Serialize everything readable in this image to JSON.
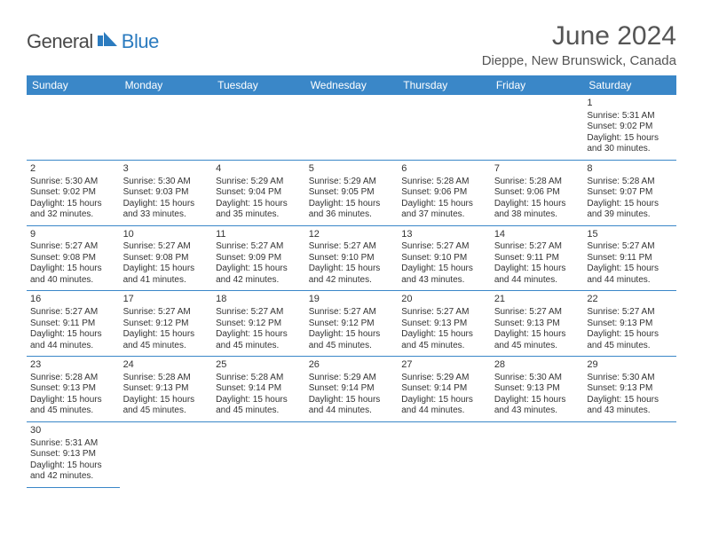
{
  "logo": {
    "general": "General",
    "blue": "Blue"
  },
  "header": {
    "month_title": "June 2024",
    "location": "Dieppe, New Brunswick, Canada"
  },
  "colors": {
    "header_bg": "#3a87c8",
    "header_text": "#ffffff",
    "row_divider": "#3a87c8",
    "text": "#333333",
    "logo_gray": "#4a4a4a",
    "logo_blue": "#2b7bbf"
  },
  "days_of_week": [
    "Sunday",
    "Monday",
    "Tuesday",
    "Wednesday",
    "Thursday",
    "Friday",
    "Saturday"
  ],
  "grid": [
    [
      null,
      null,
      null,
      null,
      null,
      null,
      {
        "n": "1",
        "sr": "Sunrise: 5:31 AM",
        "ss": "Sunset: 9:02 PM",
        "d1": "Daylight: 15 hours",
        "d2": "and 30 minutes."
      }
    ],
    [
      {
        "n": "2",
        "sr": "Sunrise: 5:30 AM",
        "ss": "Sunset: 9:02 PM",
        "d1": "Daylight: 15 hours",
        "d2": "and 32 minutes."
      },
      {
        "n": "3",
        "sr": "Sunrise: 5:30 AM",
        "ss": "Sunset: 9:03 PM",
        "d1": "Daylight: 15 hours",
        "d2": "and 33 minutes."
      },
      {
        "n": "4",
        "sr": "Sunrise: 5:29 AM",
        "ss": "Sunset: 9:04 PM",
        "d1": "Daylight: 15 hours",
        "d2": "and 35 minutes."
      },
      {
        "n": "5",
        "sr": "Sunrise: 5:29 AM",
        "ss": "Sunset: 9:05 PM",
        "d1": "Daylight: 15 hours",
        "d2": "and 36 minutes."
      },
      {
        "n": "6",
        "sr": "Sunrise: 5:28 AM",
        "ss": "Sunset: 9:06 PM",
        "d1": "Daylight: 15 hours",
        "d2": "and 37 minutes."
      },
      {
        "n": "7",
        "sr": "Sunrise: 5:28 AM",
        "ss": "Sunset: 9:06 PM",
        "d1": "Daylight: 15 hours",
        "d2": "and 38 minutes."
      },
      {
        "n": "8",
        "sr": "Sunrise: 5:28 AM",
        "ss": "Sunset: 9:07 PM",
        "d1": "Daylight: 15 hours",
        "d2": "and 39 minutes."
      }
    ],
    [
      {
        "n": "9",
        "sr": "Sunrise: 5:27 AM",
        "ss": "Sunset: 9:08 PM",
        "d1": "Daylight: 15 hours",
        "d2": "and 40 minutes."
      },
      {
        "n": "10",
        "sr": "Sunrise: 5:27 AM",
        "ss": "Sunset: 9:08 PM",
        "d1": "Daylight: 15 hours",
        "d2": "and 41 minutes."
      },
      {
        "n": "11",
        "sr": "Sunrise: 5:27 AM",
        "ss": "Sunset: 9:09 PM",
        "d1": "Daylight: 15 hours",
        "d2": "and 42 minutes."
      },
      {
        "n": "12",
        "sr": "Sunrise: 5:27 AM",
        "ss": "Sunset: 9:10 PM",
        "d1": "Daylight: 15 hours",
        "d2": "and 42 minutes."
      },
      {
        "n": "13",
        "sr": "Sunrise: 5:27 AM",
        "ss": "Sunset: 9:10 PM",
        "d1": "Daylight: 15 hours",
        "d2": "and 43 minutes."
      },
      {
        "n": "14",
        "sr": "Sunrise: 5:27 AM",
        "ss": "Sunset: 9:11 PM",
        "d1": "Daylight: 15 hours",
        "d2": "and 44 minutes."
      },
      {
        "n": "15",
        "sr": "Sunrise: 5:27 AM",
        "ss": "Sunset: 9:11 PM",
        "d1": "Daylight: 15 hours",
        "d2": "and 44 minutes."
      }
    ],
    [
      {
        "n": "16",
        "sr": "Sunrise: 5:27 AM",
        "ss": "Sunset: 9:11 PM",
        "d1": "Daylight: 15 hours",
        "d2": "and 44 minutes."
      },
      {
        "n": "17",
        "sr": "Sunrise: 5:27 AM",
        "ss": "Sunset: 9:12 PM",
        "d1": "Daylight: 15 hours",
        "d2": "and 45 minutes."
      },
      {
        "n": "18",
        "sr": "Sunrise: 5:27 AM",
        "ss": "Sunset: 9:12 PM",
        "d1": "Daylight: 15 hours",
        "d2": "and 45 minutes."
      },
      {
        "n": "19",
        "sr": "Sunrise: 5:27 AM",
        "ss": "Sunset: 9:12 PM",
        "d1": "Daylight: 15 hours",
        "d2": "and 45 minutes."
      },
      {
        "n": "20",
        "sr": "Sunrise: 5:27 AM",
        "ss": "Sunset: 9:13 PM",
        "d1": "Daylight: 15 hours",
        "d2": "and 45 minutes."
      },
      {
        "n": "21",
        "sr": "Sunrise: 5:27 AM",
        "ss": "Sunset: 9:13 PM",
        "d1": "Daylight: 15 hours",
        "d2": "and 45 minutes."
      },
      {
        "n": "22",
        "sr": "Sunrise: 5:27 AM",
        "ss": "Sunset: 9:13 PM",
        "d1": "Daylight: 15 hours",
        "d2": "and 45 minutes."
      }
    ],
    [
      {
        "n": "23",
        "sr": "Sunrise: 5:28 AM",
        "ss": "Sunset: 9:13 PM",
        "d1": "Daylight: 15 hours",
        "d2": "and 45 minutes."
      },
      {
        "n": "24",
        "sr": "Sunrise: 5:28 AM",
        "ss": "Sunset: 9:13 PM",
        "d1": "Daylight: 15 hours",
        "d2": "and 45 minutes."
      },
      {
        "n": "25",
        "sr": "Sunrise: 5:28 AM",
        "ss": "Sunset: 9:14 PM",
        "d1": "Daylight: 15 hours",
        "d2": "and 45 minutes."
      },
      {
        "n": "26",
        "sr": "Sunrise: 5:29 AM",
        "ss": "Sunset: 9:14 PM",
        "d1": "Daylight: 15 hours",
        "d2": "and 44 minutes."
      },
      {
        "n": "27",
        "sr": "Sunrise: 5:29 AM",
        "ss": "Sunset: 9:14 PM",
        "d1": "Daylight: 15 hours",
        "d2": "and 44 minutes."
      },
      {
        "n": "28",
        "sr": "Sunrise: 5:30 AM",
        "ss": "Sunset: 9:13 PM",
        "d1": "Daylight: 15 hours",
        "d2": "and 43 minutes."
      },
      {
        "n": "29",
        "sr": "Sunrise: 5:30 AM",
        "ss": "Sunset: 9:13 PM",
        "d1": "Daylight: 15 hours",
        "d2": "and 43 minutes."
      }
    ],
    [
      {
        "n": "30",
        "sr": "Sunrise: 5:31 AM",
        "ss": "Sunset: 9:13 PM",
        "d1": "Daylight: 15 hours",
        "d2": "and 42 minutes."
      },
      null,
      null,
      null,
      null,
      null,
      null
    ]
  ]
}
